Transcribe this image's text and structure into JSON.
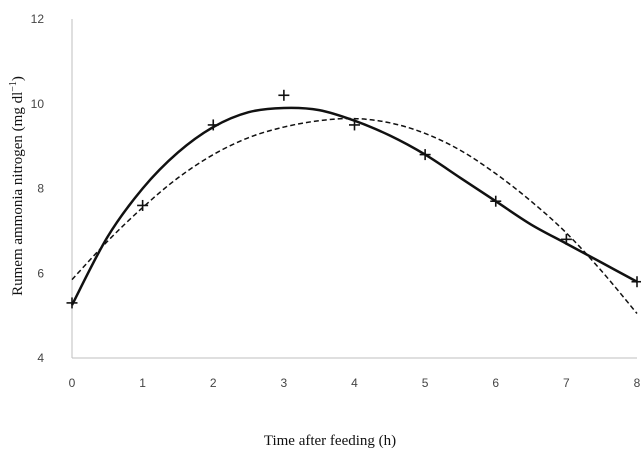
{
  "chart_data": {
    "type": "scatter",
    "title": "",
    "xlabel": "Time after feeding (h)",
    "ylabel": "Rumem ammonia nitrogen (mg dl",
    "ylabel_superscript": "−1",
    "ylabel_close": ")",
    "xlim": [
      0,
      8
    ],
    "ylim": [
      4,
      12
    ],
    "x_ticks": [
      "0",
      "1",
      "2",
      "3",
      "4",
      "5",
      "6",
      "7",
      "8"
    ],
    "y_ticks": [
      "4",
      "6",
      "8",
      "10",
      "12"
    ],
    "grid": false,
    "legend": "none",
    "series": [
      {
        "kind": "points",
        "marker": "plus",
        "x": [
          0,
          1,
          2,
          3,
          4,
          5,
          6,
          7,
          8
        ],
        "y": [
          5.3,
          7.6,
          9.5,
          10.2,
          9.5,
          8.8,
          7.7,
          6.8,
          5.8
        ]
      },
      {
        "kind": "line",
        "style": "solid",
        "x": [
          0,
          0.5,
          1,
          1.5,
          2,
          2.5,
          3,
          3.5,
          4,
          4.5,
          5,
          5.5,
          6,
          6.5,
          7,
          7.5,
          8
        ],
        "y": [
          5.25,
          6.85,
          8.0,
          8.85,
          9.45,
          9.8,
          9.9,
          9.85,
          9.6,
          9.25,
          8.8,
          8.25,
          7.7,
          7.15,
          6.7,
          6.25,
          5.8
        ]
      },
      {
        "kind": "line",
        "style": "dashed",
        "x": [
          0,
          0.5,
          1,
          1.5,
          2,
          2.5,
          3,
          3.5,
          4,
          4.5,
          5,
          5.5,
          6,
          6.5,
          7,
          7.5,
          8
        ],
        "y": [
          5.85,
          6.75,
          7.55,
          8.25,
          8.8,
          9.2,
          9.45,
          9.6,
          9.65,
          9.55,
          9.3,
          8.9,
          8.35,
          7.7,
          6.95,
          6.05,
          5.05
        ]
      }
    ],
    "colors": {
      "line": "#111111",
      "axis": "#bfbfbf",
      "text": "#444444"
    }
  }
}
